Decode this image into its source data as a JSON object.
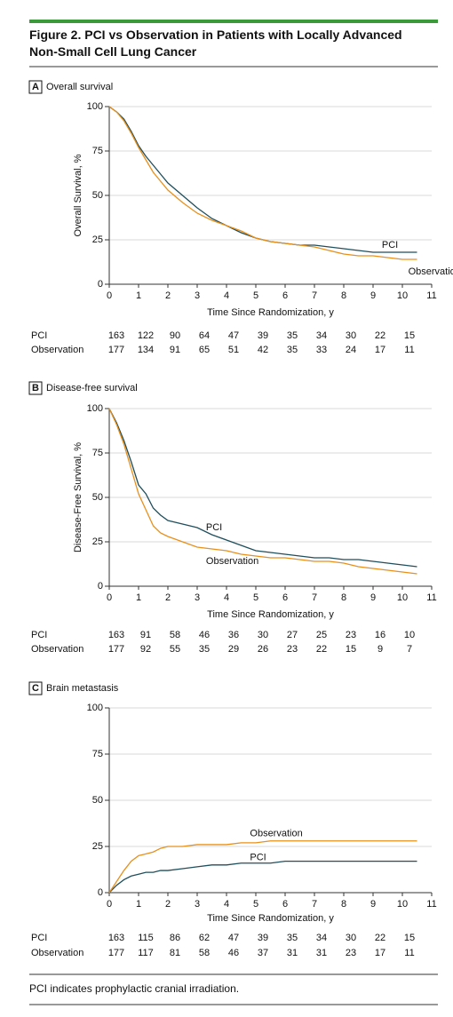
{
  "title": "Figure 2. PCI vs Observation in Patients with Locally Advanced Non-Small Cell Lung Cancer",
  "footnote": "PCI indicates prophylactic cranial irradiation.",
  "chart_data": [
    {
      "type": "line",
      "panel": "A",
      "title": "Overall survival",
      "x_label": "Time Since Randomization, y",
      "y_label": "Overall Survival, %",
      "xlim": [
        0,
        11
      ],
      "xticks": [
        0,
        1,
        2,
        3,
        4,
        5,
        6,
        7,
        8,
        9,
        10,
        11
      ],
      "ylim": [
        0,
        100
      ],
      "yticks": [
        0,
        25,
        50,
        75,
        100
      ],
      "grid": true,
      "x": [
        0,
        0.25,
        0.5,
        0.75,
        1,
        1.25,
        1.5,
        1.75,
        2,
        2.5,
        3,
        3.5,
        4,
        4.5,
        5,
        5.5,
        6,
        6.5,
        7,
        7.5,
        8,
        8.5,
        9,
        9.5,
        10,
        10.5
      ],
      "series": [
        {
          "name": "PCI",
          "color": "#1f4e5c",
          "values": [
            100,
            97,
            93,
            86,
            78,
            72,
            67,
            62,
            57,
            50,
            43,
            37,
            33,
            29,
            26,
            24,
            23,
            22,
            22,
            21,
            20,
            19,
            18,
            18,
            18,
            18
          ]
        },
        {
          "name": "Observation",
          "color": "#e8901a",
          "values": [
            100,
            97,
            92,
            85,
            77,
            70,
            63,
            58,
            53,
            46,
            40,
            36,
            33,
            30,
            26,
            24,
            23,
            22,
            21,
            19,
            17,
            16,
            16,
            15,
            14,
            14
          ]
        }
      ],
      "risk_table": [
        {
          "name": "PCI",
          "values": [
            163,
            122,
            90,
            64,
            47,
            39,
            35,
            34,
            30,
            22,
            15
          ]
        },
        {
          "name": "Observation",
          "values": [
            177,
            134,
            91,
            65,
            51,
            42,
            35,
            33,
            24,
            17,
            11
          ]
        }
      ]
    },
    {
      "type": "line",
      "panel": "B",
      "title": "Disease-free survival",
      "x_label": "Time Since Randomization, y",
      "y_label": "Disease-Free Survival, %",
      "xlim": [
        0,
        11
      ],
      "xticks": [
        0,
        1,
        2,
        3,
        4,
        5,
        6,
        7,
        8,
        9,
        10,
        11
      ],
      "ylim": [
        0,
        100
      ],
      "yticks": [
        0,
        25,
        50,
        75,
        100
      ],
      "grid": true,
      "x": [
        0,
        0.25,
        0.5,
        0.75,
        1,
        1.25,
        1.5,
        1.75,
        2,
        2.5,
        3,
        3.5,
        4,
        4.5,
        5,
        5.5,
        6,
        6.5,
        7,
        7.5,
        8,
        8.5,
        9,
        9.5,
        10,
        10.5
      ],
      "series": [
        {
          "name": "PCI",
          "color": "#1f4e5c",
          "values": [
            100,
            92,
            82,
            70,
            57,
            52,
            44,
            40,
            37,
            35,
            33,
            29,
            26,
            23,
            20,
            19,
            18,
            17,
            16,
            16,
            15,
            15,
            14,
            13,
            12,
            11
          ]
        },
        {
          "name": "Observation",
          "color": "#e8901a",
          "values": [
            100,
            91,
            80,
            66,
            52,
            43,
            34,
            30,
            28,
            25,
            22,
            21,
            20,
            18,
            17,
            16,
            16,
            15,
            14,
            14,
            13,
            11,
            10,
            9,
            8,
            7
          ]
        }
      ],
      "risk_table": [
        {
          "name": "PCI",
          "values": [
            163,
            91,
            58,
            46,
            36,
            30,
            27,
            25,
            23,
            16,
            10
          ]
        },
        {
          "name": "Observation",
          "values": [
            177,
            92,
            55,
            35,
            29,
            26,
            23,
            22,
            15,
            9,
            7
          ]
        }
      ]
    },
    {
      "type": "line",
      "panel": "C",
      "title": "Brain metastasis",
      "x_label": "Time Since Randomization, y",
      "xlim": [
        0,
        11
      ],
      "xticks": [
        0,
        1,
        2,
        3,
        4,
        5,
        6,
        7,
        8,
        9,
        10,
        11
      ],
      "ylim": [
        0,
        100
      ],
      "yticks": [
        0,
        25,
        50,
        75,
        100
      ],
      "grid": true,
      "x": [
        0,
        0.25,
        0.5,
        0.75,
        1,
        1.25,
        1.5,
        1.75,
        2,
        2.5,
        3,
        3.5,
        4,
        4.5,
        5,
        5.5,
        6,
        6.5,
        7,
        7.5,
        8,
        8.5,
        9,
        9.5,
        10,
        10.5
      ],
      "series": [
        {
          "name": "PCI",
          "color": "#1f4e5c",
          "values": [
            0,
            4,
            7,
            9,
            10,
            11,
            11,
            12,
            12,
            13,
            14,
            15,
            15,
            16,
            16,
            16,
            17,
            17,
            17,
            17,
            17,
            17,
            17,
            17,
            17,
            17
          ]
        },
        {
          "name": "Observation",
          "color": "#e8901a",
          "values": [
            0,
            6,
            12,
            17,
            20,
            21,
            22,
            24,
            25,
            25,
            26,
            26,
            26,
            27,
            27,
            28,
            28,
            28,
            28,
            28,
            28,
            28,
            28,
            28,
            28,
            28
          ]
        }
      ],
      "risk_table": [
        {
          "name": "PCI",
          "values": [
            163,
            115,
            86,
            62,
            47,
            39,
            35,
            34,
            30,
            22,
            15
          ]
        },
        {
          "name": "Observation",
          "values": [
            177,
            117,
            81,
            58,
            46,
            37,
            31,
            31,
            23,
            17,
            11
          ]
        }
      ]
    }
  ]
}
